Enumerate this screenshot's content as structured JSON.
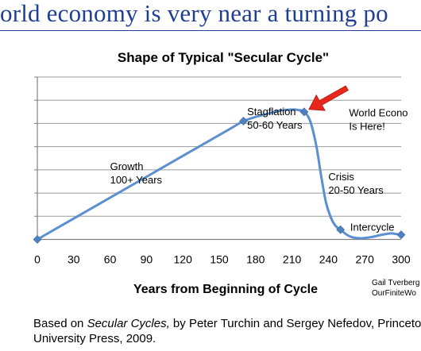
{
  "slide": {
    "headline": "orld economy is very near a turning po",
    "footnote": {
      "prefix": "Based on ",
      "title_italic": "Secular Cycles,",
      "suffix": " by Peter Turchin and Sergey Nefedov, Princeton",
      "line2": "University Press, 2009."
    }
  },
  "chart_data": {
    "type": "line",
    "title": "Shape of Typical \"Secular Cycle\"",
    "xlabel": "Years from Beginning of Cycle",
    "ylabel": "",
    "xlim": [
      0,
      300
    ],
    "ylim": [
      0,
      7
    ],
    "x_ticks": [
      "0",
      "30",
      "60",
      "90",
      "120",
      "150",
      "180",
      "210",
      "240",
      "270",
      "300"
    ],
    "grid": "horizontal",
    "series": [
      {
        "color": "#5b8fd0",
        "marker_color": "#4f81bd",
        "points": [
          {
            "x": 0,
            "y": 0
          },
          {
            "x": 170,
            "y": 5.1
          },
          {
            "x": 220,
            "y": 5.5
          },
          {
            "x": 250,
            "y": 0.42
          },
          {
            "x": 300,
            "y": 0.2
          }
        ],
        "curve": [
          [
            0,
            0
          ],
          [
            20,
            0.6
          ],
          [
            40,
            1.2
          ],
          [
            60,
            1.8
          ],
          [
            80,
            2.4
          ],
          [
            100,
            3.0
          ],
          [
            120,
            3.6
          ],
          [
            140,
            4.2
          ],
          [
            160,
            4.8
          ],
          [
            170,
            5.1
          ],
          [
            180,
            5.28
          ],
          [
            190,
            5.42
          ],
          [
            200,
            5.55
          ],
          [
            210,
            5.6
          ],
          [
            215,
            5.58
          ],
          [
            220,
            5.5
          ],
          [
            225,
            5.1
          ],
          [
            230,
            4.05
          ],
          [
            234,
            2.75
          ],
          [
            238,
            1.6
          ],
          [
            242,
            0.95
          ],
          [
            246,
            0.58
          ],
          [
            250,
            0.42
          ],
          [
            255,
            0.21
          ],
          [
            260,
            0.09
          ],
          [
            267,
            0.05
          ],
          [
            275,
            0.1
          ],
          [
            285,
            0.21
          ],
          [
            292,
            0.26
          ],
          [
            296,
            0.23
          ],
          [
            300,
            0.2
          ]
        ]
      }
    ],
    "annotations": [
      {
        "lines": [
          "Growth",
          "100+ Years"
        ],
        "x": 60,
        "y": 3.0
      },
      {
        "lines": [
          "Stagflation",
          "50-60 Years"
        ],
        "x": 173,
        "y": 5.35
      },
      {
        "lines": [
          "World Econo",
          "Is Here!"
        ],
        "x": 257,
        "y": 5.3
      },
      {
        "lines": [
          "Crisis",
          "20-50 Years"
        ],
        "x": 240,
        "y": 2.55
      },
      {
        "lines": [
          "Intercycle"
        ],
        "x": 258,
        "y": 0.38
      }
    ],
    "arrow": {
      "target": {
        "x": 220,
        "y": 5.5
      },
      "color": "#e8261c"
    },
    "credit": [
      "Gail Tverberg",
      "OurFiniteWo"
    ]
  }
}
